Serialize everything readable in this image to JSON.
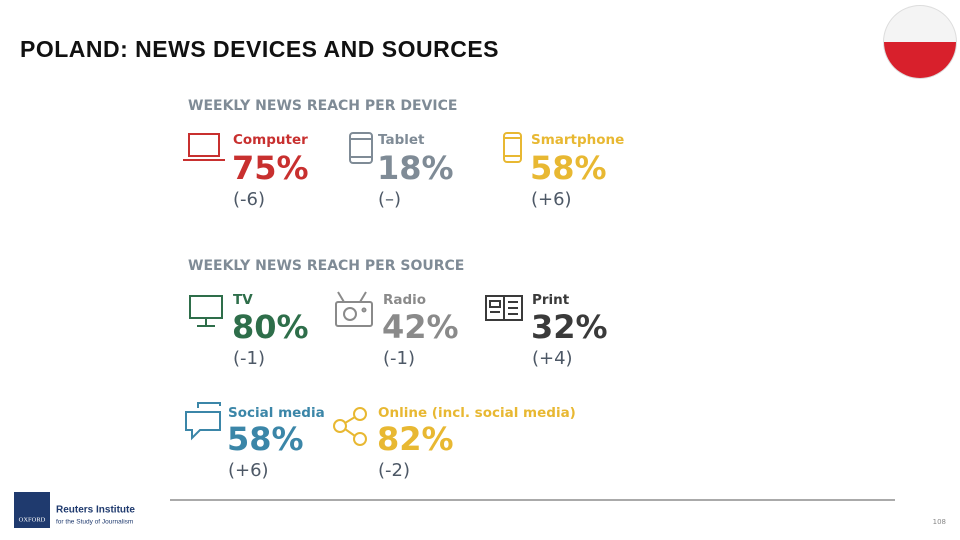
{
  "header": {
    "title": "POLAND: NEWS DEVICES AND SOURCES"
  },
  "device_section": {
    "heading": "WEEKLY NEWS REACH PER DEVICE",
    "items": [
      {
        "label": "Computer",
        "value": "75%",
        "change": "(-6)"
      },
      {
        "label": "Tablet",
        "value": "18%",
        "change": "(–)"
      },
      {
        "label": "Smartphone",
        "value": "58%",
        "change": "(+6)"
      }
    ]
  },
  "source_section": {
    "heading": "WEEKLY NEWS REACH PER SOURCE",
    "items": [
      {
        "label": "TV",
        "value": "80%",
        "change": "(-1)"
      },
      {
        "label": "Radio",
        "value": "42%",
        "change": "(-1)"
      },
      {
        "label": "Print",
        "value": "32%",
        "change": "(+4)"
      },
      {
        "label": "Social media",
        "value": "58%",
        "change": "(+6)"
      },
      {
        "label": "Online (incl. social media)",
        "value": "82%",
        "change": "(-2)"
      }
    ]
  },
  "footer": {
    "logo_mark": "OXFORD",
    "institute": "Reuters Institute",
    "subtitle": "for the Study of Journalism",
    "page_number": "108"
  }
}
